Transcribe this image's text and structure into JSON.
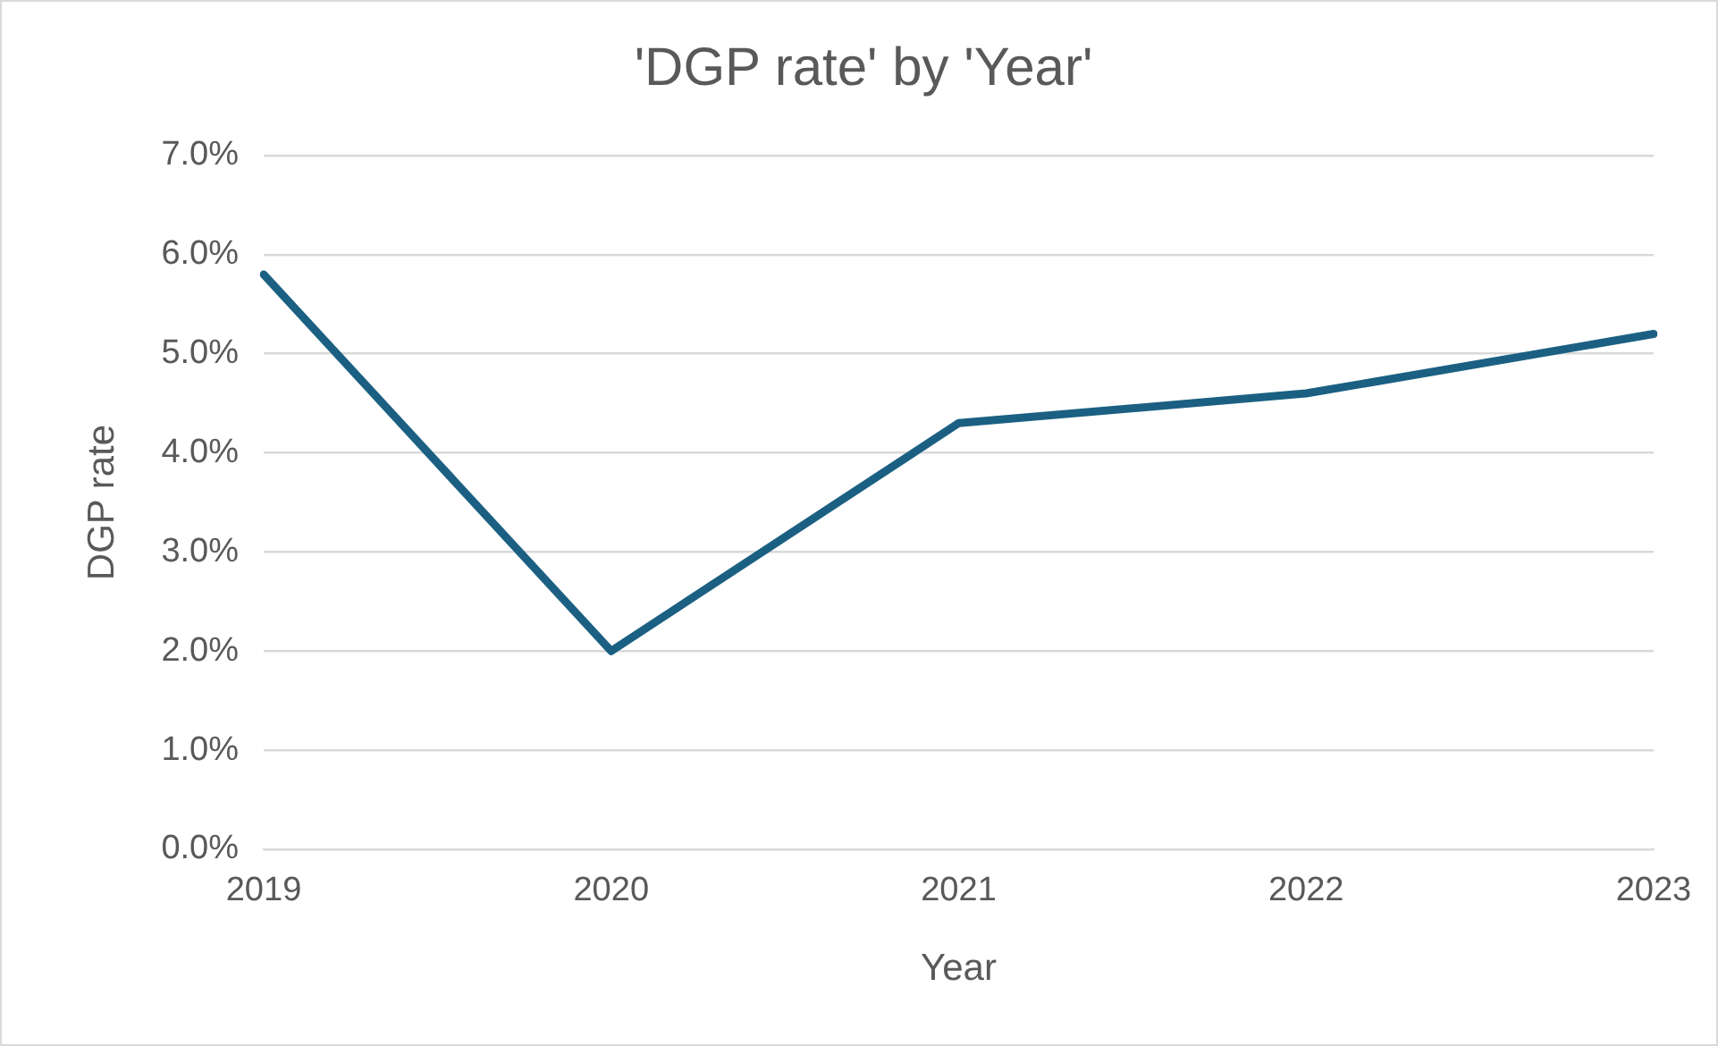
{
  "chart_data": {
    "type": "line",
    "title": "'DGP rate' by 'Year'",
    "xlabel": "Year",
    "ylabel": "DGP rate",
    "categories": [
      "2019",
      "2020",
      "2021",
      "2022",
      "2023"
    ],
    "series": [
      {
        "color": "#1b6082",
        "values": [
          5.8,
          2.0,
          4.3,
          4.6,
          5.2
        ]
      }
    ],
    "ylim": [
      0,
      7
    ],
    "yticks": [
      {
        "value": 0,
        "label": "0.0%"
      },
      {
        "value": 1,
        "label": "1.0%"
      },
      {
        "value": 2,
        "label": "2.0%"
      },
      {
        "value": 3,
        "label": "3.0%"
      },
      {
        "value": 4,
        "label": "4.0%"
      },
      {
        "value": 5,
        "label": "5.0%"
      },
      {
        "value": 6,
        "label": "6.0%"
      },
      {
        "value": 7,
        "label": "7.0%"
      }
    ],
    "grid": "y",
    "legend": false,
    "marker": "none",
    "line_style": "solid"
  }
}
